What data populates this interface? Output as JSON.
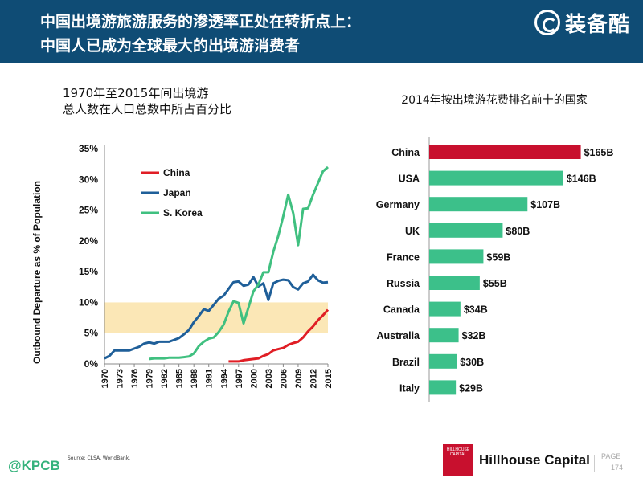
{
  "header": {
    "title_line1": "中国出境游旅游服务的渗透率正处在转折点上：",
    "title_line2": "中国人已成为全球最大的出境游消费者",
    "brand_text": "装备酷"
  },
  "left_chart_title_line1": "1970年至2015年间出境游",
  "left_chart_title_line2": "总人数在人口总数中所占百分比",
  "right_chart_title": "2014年按出境游花费排名前十的国家",
  "colors": {
    "header_bg": "#0f4c75",
    "china": "#e01e25",
    "japan": "#1f5f99",
    "korea": "#40c080",
    "band": "#fbe7b6",
    "bar_top": "#c8102e",
    "bar": "#3cc08a"
  },
  "chart_data": [
    {
      "type": "line",
      "ylabel": "Outbound Departure as % of Population",
      "xlabel": "",
      "ylim": [
        0,
        35
      ],
      "xlim": [
        1970,
        2015
      ],
      "y_ticks": [
        "0%",
        "5%",
        "10%",
        "15%",
        "20%",
        "25%",
        "30%",
        "35%"
      ],
      "x_ticks": [
        "1970",
        "1973",
        "1976",
        "1979",
        "1982",
        "1985",
        "1988",
        "1991",
        "1994",
        "1997",
        "2000",
        "2003",
        "2006",
        "2009",
        "2012",
        "2015"
      ],
      "highlight_band": [
        5,
        10
      ],
      "legend": {
        "placement": "top-left",
        "entries": [
          "China",
          "Japan",
          "S. Korea"
        ]
      },
      "series": [
        {
          "name": "China",
          "x": [
            1995,
            1996,
            1997,
            1998,
            1999,
            2000,
            2001,
            2002,
            2003,
            2004,
            2005,
            2006,
            2007,
            2008,
            2009,
            2010,
            2011,
            2012,
            2013,
            2014,
            2015
          ],
          "values": [
            0.4,
            0.4,
            0.4,
            0.6,
            0.7,
            0.8,
            0.9,
            1.3,
            1.6,
            2.2,
            2.4,
            2.6,
            3.1,
            3.4,
            3.6,
            4.3,
            5.3,
            6.1,
            7.1,
            7.9,
            8.8
          ]
        },
        {
          "name": "Japan",
          "x": [
            1970,
            1971,
            1972,
            1973,
            1974,
            1975,
            1976,
            1977,
            1978,
            1979,
            1980,
            1981,
            1982,
            1983,
            1984,
            1985,
            1986,
            1987,
            1988,
            1989,
            1990,
            1991,
            1992,
            1993,
            1994,
            1995,
            1996,
            1997,
            1998,
            1999,
            2000,
            2001,
            2002,
            2003,
            2004,
            2005,
            2006,
            2007,
            2008,
            2009,
            2010,
            2011,
            2012,
            2013,
            2014,
            2015
          ],
          "values": [
            0.9,
            1.3,
            2.2,
            2.2,
            2.2,
            2.2,
            2.5,
            2.8,
            3.3,
            3.5,
            3.3,
            3.6,
            3.6,
            3.6,
            3.9,
            4.2,
            4.8,
            5.5,
            6.8,
            7.8,
            8.9,
            8.6,
            9.6,
            10.6,
            11.1,
            12.2,
            13.3,
            13.4,
            12.7,
            12.9,
            14.1,
            12.6,
            13.1,
            10.4,
            13.1,
            13.5,
            13.7,
            13.6,
            12.5,
            12.1,
            13.1,
            13.4,
            14.5,
            13.6,
            13.2,
            13.3
          ]
        },
        {
          "name": "S. Korea",
          "x": [
            1979,
            1980,
            1981,
            1982,
            1983,
            1984,
            1985,
            1986,
            1987,
            1988,
            1989,
            1990,
            1991,
            1992,
            1993,
            1994,
            1995,
            1996,
            1997,
            1998,
            1999,
            2000,
            2001,
            2002,
            2003,
            2004,
            2005,
            2006,
            2007,
            2008,
            2009,
            2010,
            2011,
            2012,
            2013,
            2014,
            2015
          ],
          "values": [
            0.8,
            0.9,
            0.9,
            0.9,
            1.0,
            1.0,
            1.0,
            1.1,
            1.2,
            1.7,
            2.9,
            3.6,
            4.1,
            4.3,
            5.2,
            6.4,
            8.5,
            10.2,
            9.9,
            6.6,
            9.2,
            11.8,
            12.9,
            14.9,
            14.9,
            18.2,
            20.8,
            24.0,
            27.5,
            24.5,
            19.3,
            25.2,
            25.3,
            27.5,
            29.4,
            31.3,
            32.0
          ]
        }
      ]
    },
    {
      "type": "bar",
      "orientation": "horizontal",
      "title": "2014年按出境游花费排名前十的国家",
      "categories": [
        "China",
        "USA",
        "Germany",
        "UK",
        "France",
        "Russia",
        "Canada",
        "Australia",
        "Brazil",
        "Italy"
      ],
      "values": [
        165,
        146,
        107,
        80,
        59,
        55,
        34,
        32,
        30,
        29
      ],
      "value_labels": [
        "$165B",
        "$146B",
        "$107B",
        "$80B",
        "$59B",
        "$55B",
        "$34B",
        "$32B",
        "$30B",
        "$29B"
      ],
      "xlim": [
        0,
        175
      ]
    }
  ],
  "footer": {
    "source": "Source: CLSA, WorldBank.",
    "kpcb": "@KPCB",
    "company": "Hillhouse Capital",
    "logo_text": "HILLHOUSE CAPITAL",
    "page_label": "PAGE",
    "page_number": "174"
  }
}
